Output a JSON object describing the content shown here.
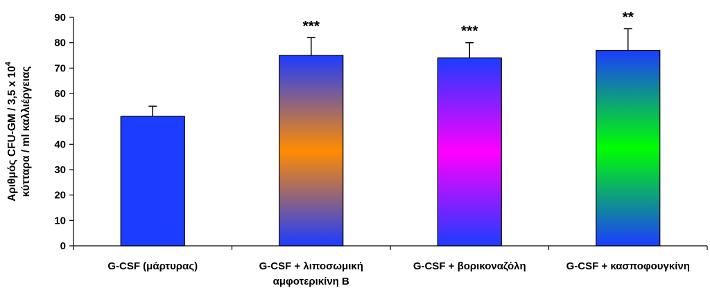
{
  "chart_data": {
    "type": "bar",
    "ylabel_line1": "Αριθμός CFU-GM / 3,5 x 10",
    "ylabel_exp": "4",
    "ylabel_line2": "κύτταρα / ml καλλιέργειας",
    "ylim": [
      0,
      90
    ],
    "yticks": [
      "0",
      "10",
      "20",
      "30",
      "40",
      "50",
      "60",
      "70",
      "80",
      "90"
    ],
    "grid": false,
    "categories": [
      {
        "lines": [
          "G-CSF (μάρτυρας)"
        ]
      },
      {
        "lines": [
          "G-CSF + λιποσωμική",
          "αμφοτερικίνη B"
        ]
      },
      {
        "lines": [
          "G-CSF + βορικοναζόλη"
        ]
      },
      {
        "lines": [
          "G-CSF + κασποφουγκίνη"
        ]
      }
    ],
    "values": [
      51,
      75,
      74,
      77
    ],
    "errors": [
      4,
      7,
      6,
      8.5
    ],
    "significance": [
      "",
      "***",
      "***",
      "**"
    ],
    "colors": [
      {
        "edge": "#1c3cff",
        "mid": "#1c3cff"
      },
      {
        "edge": "#1c3cff",
        "mid": "#ff8c00"
      },
      {
        "edge": "#1c3cff",
        "mid": "#ff00ff"
      },
      {
        "edge": "#1c3cff",
        "mid": "#00ff00"
      }
    ]
  }
}
